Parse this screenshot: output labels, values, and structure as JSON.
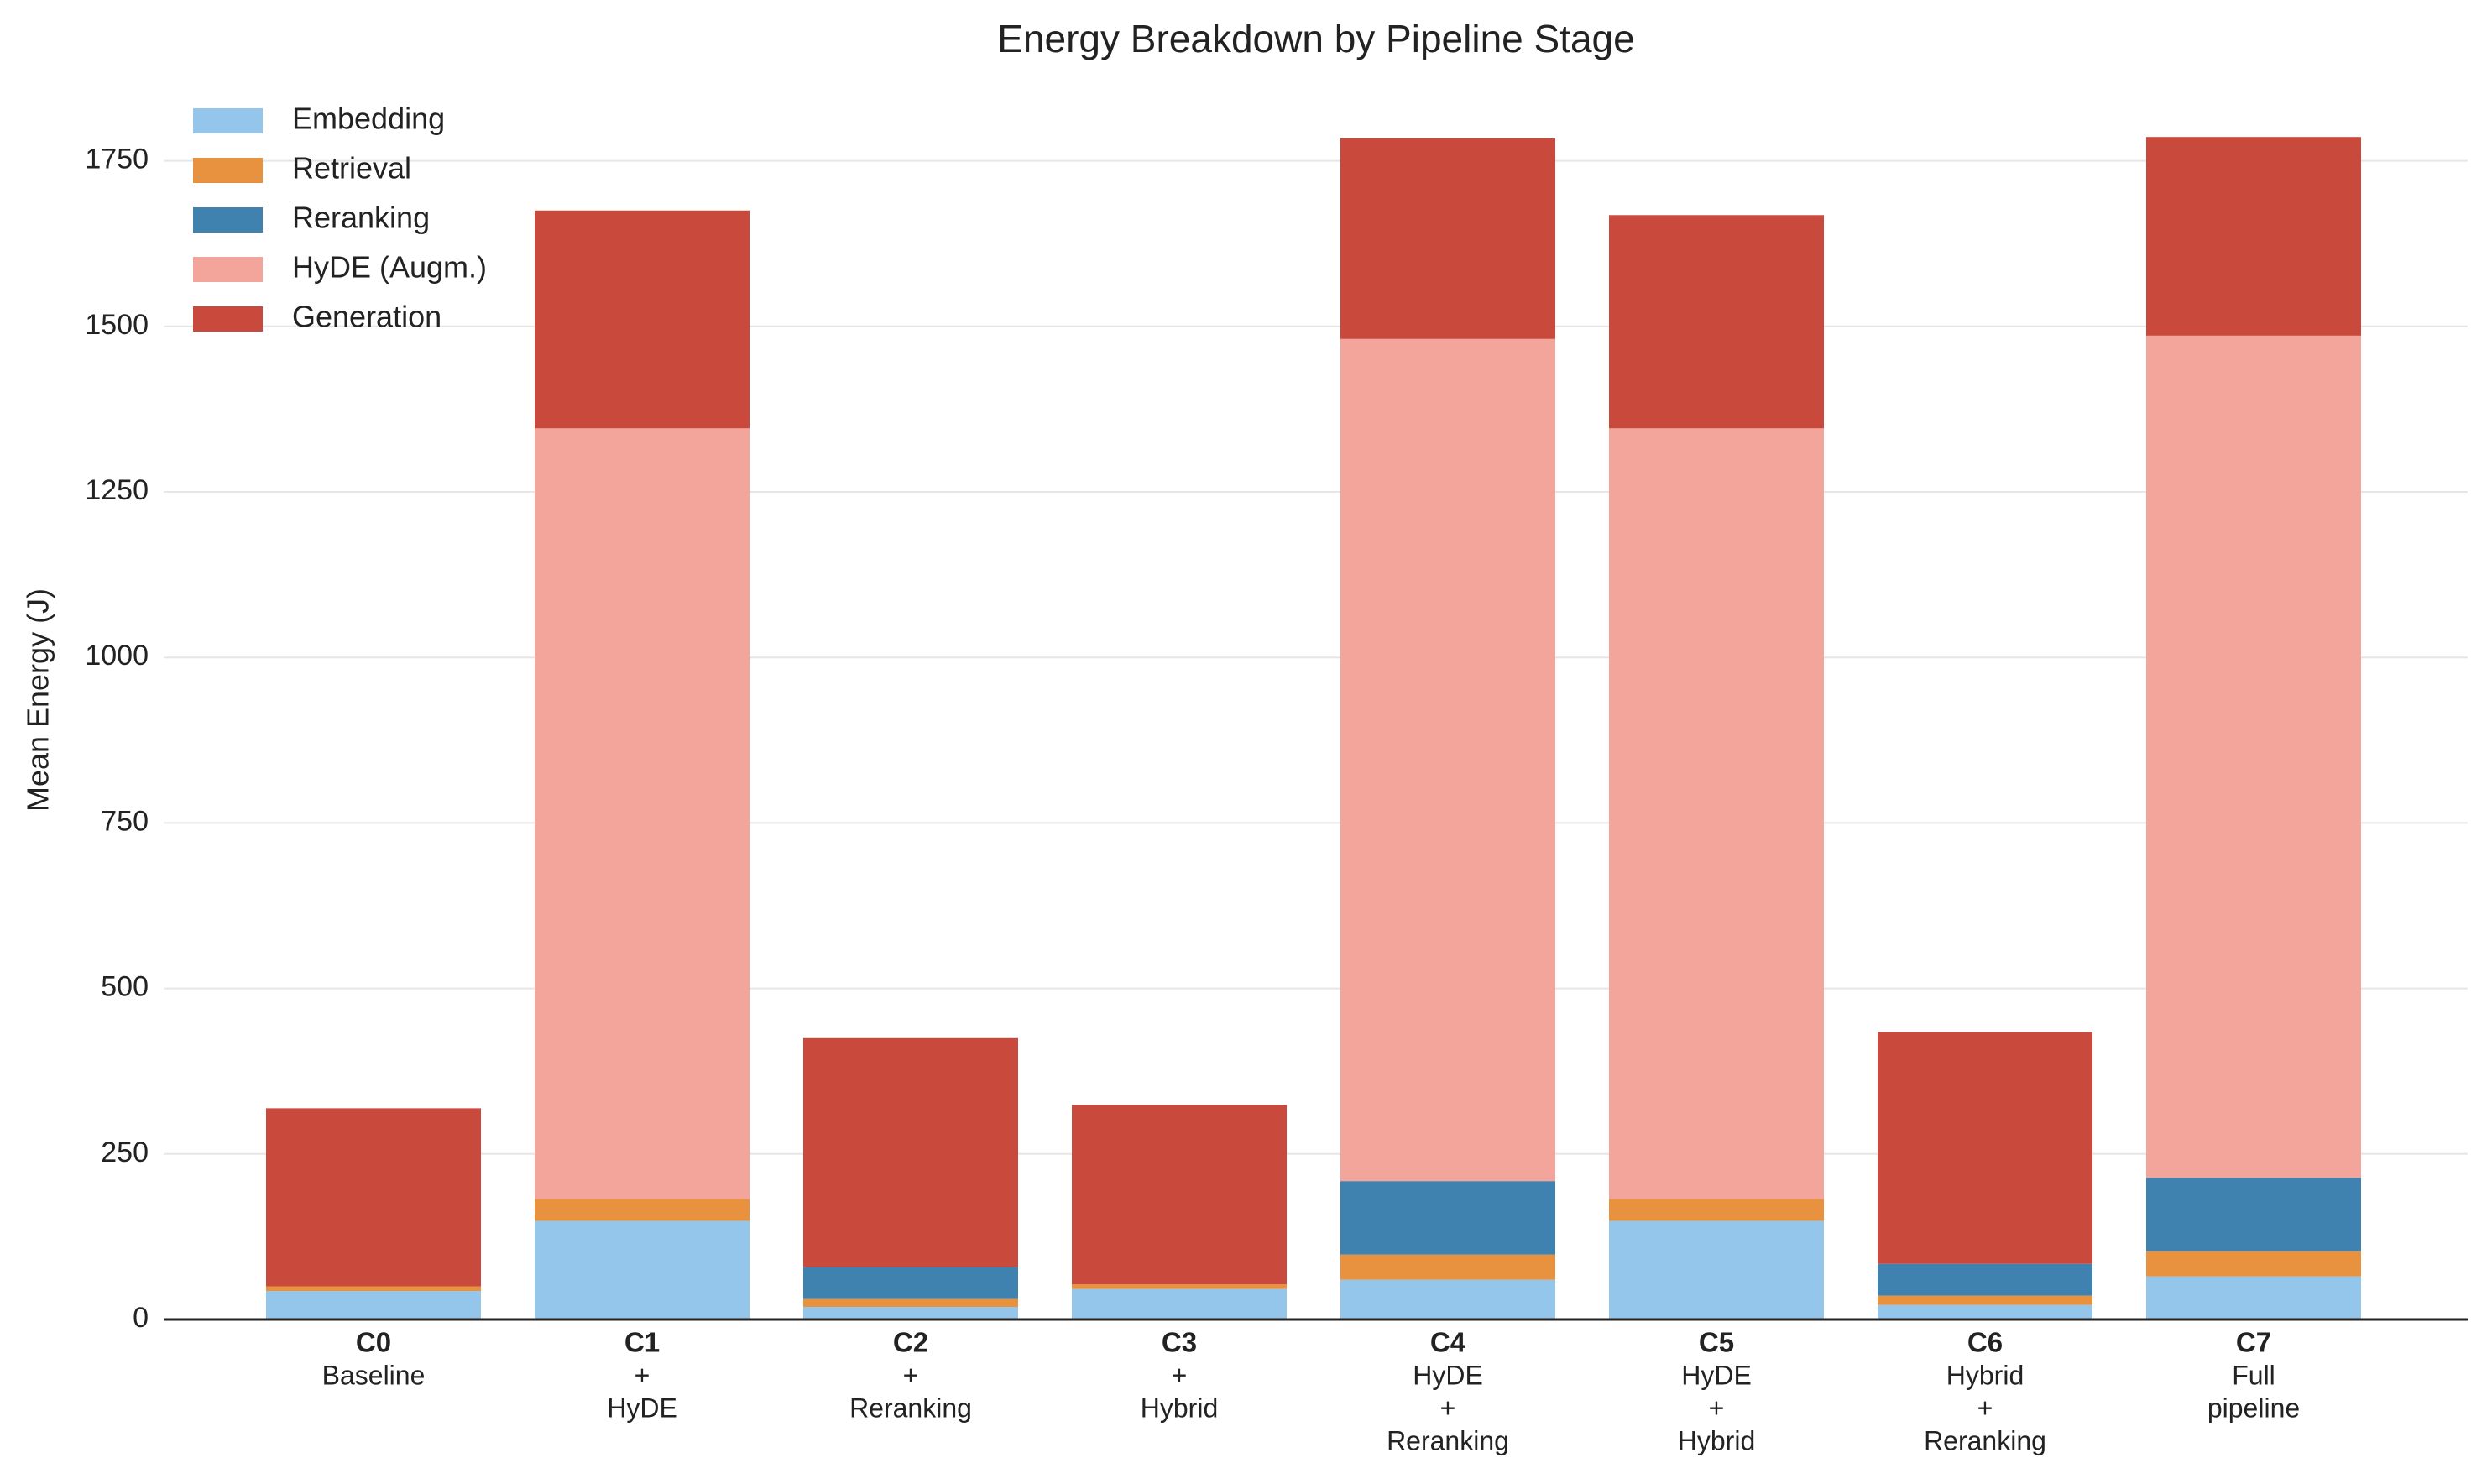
{
  "chart_data": {
    "type": "stacked_bar",
    "title": "Energy Breakdown by Pipeline Stage",
    "y_label": "Mean Energy (J)",
    "categories": [
      "C0",
      "C1",
      "C2",
      "C3",
      "C4",
      "C5",
      "C6",
      "C7"
    ],
    "category_subtitles": [
      [
        "Baseline"
      ],
      [
        "+",
        "HyDE"
      ],
      [
        "+",
        "Reranking"
      ],
      [
        "+",
        "Hybrid"
      ],
      [
        "HyDE",
        "+",
        "Reranking"
      ],
      [
        "HyDE",
        "+",
        "Hybrid"
      ],
      [
        "Hybrid",
        "+",
        "Reranking"
      ],
      [
        "Full",
        "pipeline"
      ]
    ],
    "series": [
      {
        "name": "Embedding",
        "color": "#93c6ea",
        "values": [
          43,
          149,
          19,
          46,
          60,
          149,
          22,
          65
        ]
      },
      {
        "name": "Retrieval",
        "color": "#e8913f",
        "values": [
          7,
          33,
          12,
          7,
          38,
          33,
          14,
          38
        ]
      },
      {
        "name": "Reranking",
        "color": "#3f82b0",
        "values": [
          0,
          0,
          48,
          0,
          111,
          0,
          48,
          111
        ]
      },
      {
        "name": "HyDE (Augm.)",
        "color": "#f4a59b",
        "values": [
          0,
          1164,
          0,
          0,
          1272,
          1164,
          0,
          1272
        ]
      },
      {
        "name": "Generation",
        "color": "#c9493d",
        "values": [
          269,
          329,
          346,
          271,
          303,
          322,
          350,
          300
        ]
      }
    ],
    "ylim": [
      0,
      1875
    ],
    "yticks": [
      0,
      250,
      500,
      750,
      1000,
      1250,
      1500,
      1750
    ],
    "grid": true,
    "legend": "upper-left"
  }
}
